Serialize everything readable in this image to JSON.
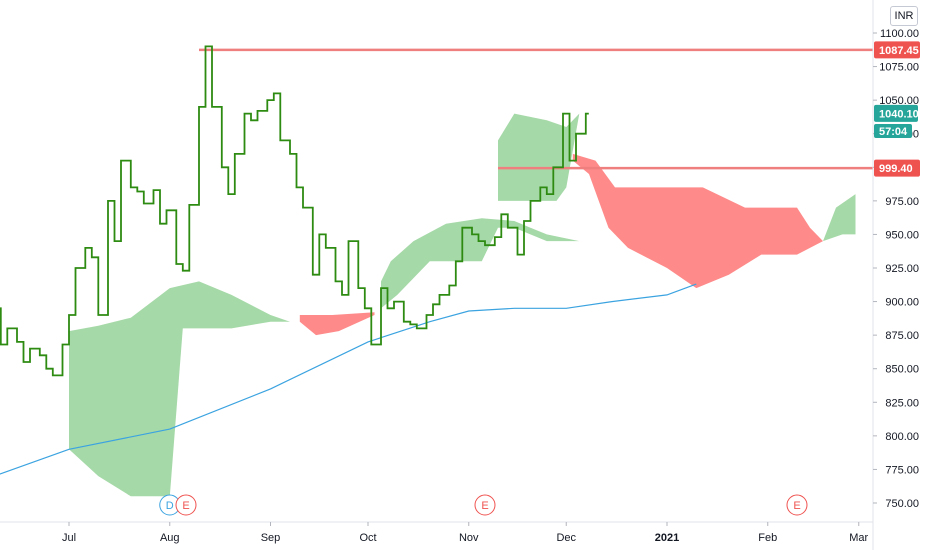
{
  "currency": "INR",
  "colors": {
    "price_line": "#2e8b12",
    "moving_average": "#3ba3e0",
    "cloud_bull": "#a6d9a8",
    "cloud_bear": "#ff8a8a",
    "level_line": "#ef7f7f",
    "level_label": "#ef5350",
    "current_price_label": "#26a69a",
    "axis_text": "#131722"
  },
  "chart_data": {
    "type": "line",
    "title": "",
    "xlabel": "",
    "ylabel": "",
    "ylim": [
      740,
      1110
    ],
    "grid": false,
    "x_tick_labels": [
      "Jul",
      "Aug",
      "Sep",
      "Oct",
      "Nov",
      "Dec",
      "2021",
      "Feb",
      "Mar"
    ],
    "y_tick_labels": [
      "1100.00",
      "1075.00",
      "1050.00",
      "1025.00",
      "1000.00",
      "975.00",
      "950.00",
      "925.00",
      "900.00",
      "875.00",
      "850.00",
      "825.00",
      "800.00",
      "775.00",
      "750.00"
    ],
    "y_ticks": [
      1100,
      1075,
      1050,
      1025,
      1000,
      975,
      950,
      925,
      900,
      875,
      850,
      825,
      800,
      775,
      750
    ],
    "price_labels": [
      {
        "text": "1087.45",
        "value": 1087.45,
        "kind": "level"
      },
      {
        "text": "1040.10",
        "value": 1040.1,
        "kind": "current"
      },
      {
        "text": "57:04",
        "value": 1027.0,
        "kind": "countdown"
      },
      {
        "text": "999.40",
        "value": 999.4,
        "kind": "level"
      }
    ],
    "horizontal_levels": [
      {
        "value": 1087.45,
        "x_start": "2020-08-10"
      },
      {
        "value": 999.4,
        "x_start": "2020-11-10"
      }
    ],
    "event_markers": [
      {
        "label": "D",
        "date": "2020-08-01",
        "color": "#3ba3e0"
      },
      {
        "label": "E",
        "date": "2020-08-06",
        "color": "#ef5350"
      },
      {
        "label": "E",
        "date": "2020-11-06",
        "color": "#ef5350"
      },
      {
        "label": "E",
        "date": "2021-02-10",
        "color": "#ef5350"
      }
    ],
    "series": [
      {
        "style": "step",
        "points": [
          [
            "2020-06-08",
            895
          ],
          [
            "2020-06-10",
            868
          ],
          [
            "2020-06-12",
            880
          ],
          [
            "2020-06-15",
            870
          ],
          [
            "2020-06-17",
            855
          ],
          [
            "2020-06-19",
            865
          ],
          [
            "2020-06-22",
            860
          ],
          [
            "2020-06-24",
            850
          ],
          [
            "2020-06-26",
            845
          ],
          [
            "2020-06-29",
            868
          ],
          [
            "2020-07-01",
            890
          ],
          [
            "2020-07-03",
            925
          ],
          [
            "2020-07-06",
            940
          ],
          [
            "2020-07-08",
            933
          ],
          [
            "2020-07-10",
            890
          ],
          [
            "2020-07-13",
            975
          ],
          [
            "2020-07-15",
            945
          ],
          [
            "2020-07-17",
            1005
          ],
          [
            "2020-07-20",
            985
          ],
          [
            "2020-07-22",
            982
          ],
          [
            "2020-07-24",
            973
          ],
          [
            "2020-07-27",
            983
          ],
          [
            "2020-07-29",
            958
          ],
          [
            "2020-07-31",
            968
          ],
          [
            "2020-08-03",
            928
          ],
          [
            "2020-08-05",
            923
          ],
          [
            "2020-08-07",
            972
          ],
          [
            "2020-08-10",
            1045
          ],
          [
            "2020-08-12",
            1090
          ],
          [
            "2020-08-14",
            1045
          ],
          [
            "2020-08-17",
            1000
          ],
          [
            "2020-08-19",
            980
          ],
          [
            "2020-08-21",
            1010
          ],
          [
            "2020-08-24",
            1040
          ],
          [
            "2020-08-26",
            1035
          ],
          [
            "2020-08-28",
            1042
          ],
          [
            "2020-08-31",
            1050
          ],
          [
            "2020-09-02",
            1055
          ],
          [
            "2020-09-04",
            1020
          ],
          [
            "2020-09-07",
            1010
          ],
          [
            "2020-09-09",
            985
          ],
          [
            "2020-09-11",
            970
          ],
          [
            "2020-09-14",
            920
          ],
          [
            "2020-09-16",
            950
          ],
          [
            "2020-09-18",
            940
          ],
          [
            "2020-09-21",
            915
          ],
          [
            "2020-09-23",
            905
          ],
          [
            "2020-09-25",
            945
          ],
          [
            "2020-09-28",
            910
          ],
          [
            "2020-09-30",
            895
          ],
          [
            "2020-10-02",
            868
          ],
          [
            "2020-10-05",
            910
          ],
          [
            "2020-10-07",
            895
          ],
          [
            "2020-10-09",
            900
          ],
          [
            "2020-10-12",
            885
          ],
          [
            "2020-10-14",
            883
          ],
          [
            "2020-10-16",
            880
          ],
          [
            "2020-10-19",
            890
          ],
          [
            "2020-10-21",
            898
          ],
          [
            "2020-10-23",
            905
          ],
          [
            "2020-10-26",
            912
          ],
          [
            "2020-10-28",
            930
          ],
          [
            "2020-10-30",
            955
          ],
          [
            "2020-11-02",
            950
          ],
          [
            "2020-11-04",
            945
          ],
          [
            "2020-11-06",
            942
          ],
          [
            "2020-11-09",
            948
          ],
          [
            "2020-11-11",
            965
          ],
          [
            "2020-11-13",
            955
          ],
          [
            "2020-11-16",
            935
          ],
          [
            "2020-11-18",
            960
          ],
          [
            "2020-11-20",
            975
          ],
          [
            "2020-11-23",
            985
          ],
          [
            "2020-11-25",
            980
          ],
          [
            "2020-11-27",
            1000
          ],
          [
            "2020-11-30",
            1040
          ],
          [
            "2020-12-02",
            1005
          ],
          [
            "2020-12-04",
            1025
          ],
          [
            "2020-12-07",
            1040
          ]
        ]
      },
      {
        "style": "line",
        "points": [
          [
            "2020-06-08",
            770
          ],
          [
            "2020-07-01",
            790
          ],
          [
            "2020-08-01",
            805
          ],
          [
            "2020-09-01",
            835
          ],
          [
            "2020-10-01",
            870
          ],
          [
            "2020-10-20",
            885
          ],
          [
            "2020-11-01",
            893
          ],
          [
            "2020-11-15",
            895
          ],
          [
            "2020-12-01",
            895
          ],
          [
            "2020-12-15",
            900
          ],
          [
            "2021-01-01",
            905
          ],
          [
            "2021-01-10",
            913
          ]
        ]
      }
    ],
    "cloud_segments": [
      {
        "kind": "bull",
        "top": [
          [
            "2020-07-01",
            878
          ],
          [
            "2020-07-10",
            882
          ],
          [
            "2020-07-20",
            888
          ],
          [
            "2020-08-01",
            910
          ],
          [
            "2020-08-10",
            915
          ],
          [
            "2020-08-20",
            905
          ],
          [
            "2020-09-01",
            890
          ],
          [
            "2020-09-07",
            885
          ],
          [
            "2020-09-12",
            885
          ]
        ],
        "bottom": [
          [
            "2020-07-01",
            790
          ],
          [
            "2020-07-10",
            770
          ],
          [
            "2020-07-20",
            755
          ],
          [
            "2020-08-01",
            755
          ],
          [
            "2020-08-05",
            880
          ],
          [
            "2020-08-10",
            880
          ],
          [
            "2020-08-20",
            880
          ],
          [
            "2020-09-01",
            885
          ],
          [
            "2020-09-07",
            885
          ],
          [
            "2020-09-12",
            885
          ]
        ]
      },
      {
        "kind": "bear",
        "top": [
          [
            "2020-09-10",
            890
          ],
          [
            "2020-09-20",
            890
          ],
          [
            "2020-10-03",
            892
          ]
        ],
        "bottom": [
          [
            "2020-09-10",
            885
          ],
          [
            "2020-09-15",
            875
          ],
          [
            "2020-09-22",
            878
          ],
          [
            "2020-10-03",
            890
          ]
        ]
      },
      {
        "kind": "bull",
        "top": [
          [
            "2020-10-05",
            915
          ],
          [
            "2020-10-08",
            930
          ],
          [
            "2020-10-15",
            945
          ],
          [
            "2020-10-25",
            958
          ],
          [
            "2020-11-05",
            962
          ],
          [
            "2020-11-15",
            960
          ],
          [
            "2020-11-20",
            955
          ],
          [
            "2020-11-25",
            950
          ],
          [
            "2020-12-05",
            945
          ]
        ],
        "bottom": [
          [
            "2020-10-05",
            895
          ],
          [
            "2020-10-10",
            905
          ],
          [
            "2020-10-20",
            930
          ],
          [
            "2020-11-01",
            930
          ],
          [
            "2020-11-05",
            930
          ],
          [
            "2020-11-10",
            955
          ],
          [
            "2020-11-15",
            955
          ],
          [
            "2020-11-25",
            945
          ],
          [
            "2020-12-05",
            945
          ]
        ]
      },
      {
        "kind": "bull",
        "top": [
          [
            "2020-11-10",
            1020
          ],
          [
            "2020-11-15",
            1040
          ],
          [
            "2020-11-25",
            1035
          ],
          [
            "2020-12-01",
            1030
          ],
          [
            "2020-12-05",
            1040
          ]
        ],
        "bottom": [
          [
            "2020-11-10",
            975
          ],
          [
            "2020-11-20",
            975
          ],
          [
            "2020-11-28",
            975
          ],
          [
            "2020-12-01",
            985
          ],
          [
            "2020-12-05",
            1040
          ]
        ]
      },
      {
        "kind": "bear",
        "top": [
          [
            "2020-12-03",
            1010
          ],
          [
            "2020-12-10",
            1005
          ],
          [
            "2020-12-16",
            985
          ],
          [
            "2021-01-05",
            985
          ],
          [
            "2021-01-12",
            985
          ],
          [
            "2021-01-25",
            970
          ],
          [
            "2021-02-10",
            970
          ],
          [
            "2021-02-14",
            955
          ],
          [
            "2021-02-18",
            945
          ]
        ],
        "bottom": [
          [
            "2020-12-03",
            1005
          ],
          [
            "2020-12-08",
            995
          ],
          [
            "2020-12-14",
            955
          ],
          [
            "2020-12-20",
            940
          ],
          [
            "2021-01-01",
            925
          ],
          [
            "2021-01-10",
            910
          ],
          [
            "2021-01-20",
            920
          ],
          [
            "2021-01-30",
            935
          ],
          [
            "2021-02-10",
            935
          ],
          [
            "2021-02-18",
            945
          ]
        ]
      },
      {
        "kind": "bull",
        "top": [
          [
            "2021-02-18",
            945
          ],
          [
            "2021-02-22",
            970
          ],
          [
            "2021-02-28",
            980
          ]
        ],
        "bottom": [
          [
            "2021-02-18",
            945
          ],
          [
            "2021-02-24",
            950
          ],
          [
            "2021-02-28",
            950
          ]
        ]
      }
    ]
  }
}
